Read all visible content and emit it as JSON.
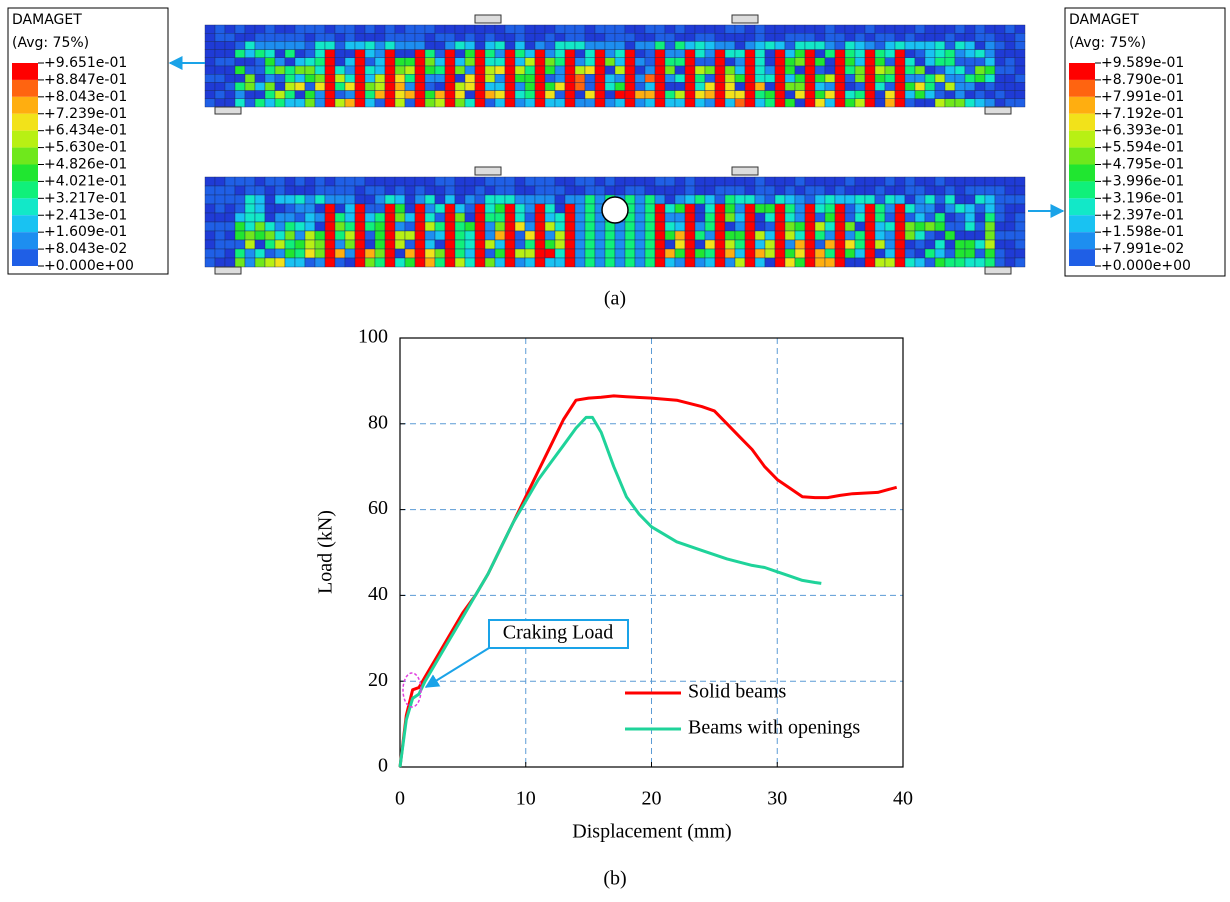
{
  "panel_a": {
    "caption": "(a)",
    "legends": [
      {
        "title": "DAMAGET",
        "subtitle": "(Avg: 75%)",
        "labels": [
          "+9.651e-01",
          "+8.847e-01",
          "+8.043e-01",
          "+7.239e-01",
          "+6.434e-01",
          "+5.630e-01",
          "+4.826e-01",
          "+4.021e-01",
          "+3.217e-01",
          "+2.413e-01",
          "+1.609e-01",
          "+8.043e-02",
          "+0.000e+00"
        ]
      },
      {
        "title": "DAMAGET",
        "subtitle": "(Avg: 75%)",
        "labels": [
          "+9.589e-01",
          "+8.790e-01",
          "+7.991e-01",
          "+7.192e-01",
          "+6.393e-01",
          "+5.594e-01",
          "+4.795e-01",
          "+3.996e-01",
          "+3.196e-01",
          "+2.397e-01",
          "+1.598e-01",
          "+7.991e-02",
          "+0.000e+00"
        ]
      }
    ]
  },
  "chart_data": {
    "type": "line",
    "caption": "(b)",
    "x_label": "Displacement (mm)",
    "y_label": "Load (kN)",
    "xlim": [
      0,
      40
    ],
    "ylim": [
      0,
      100
    ],
    "xticks": [
      0,
      10,
      20,
      30,
      40
    ],
    "yticks": [
      0,
      20,
      40,
      60,
      80,
      100
    ],
    "grid": true,
    "legend": "lower right",
    "annotations": [
      {
        "text": "Craking Load"
      }
    ],
    "series": [
      {
        "name": "Solid beams",
        "color": "#ff0000",
        "x": [
          0,
          0.5,
          1,
          1.5,
          2,
          3,
          4,
          5,
          6,
          7,
          8,
          9,
          10,
          11,
          12,
          13,
          14,
          15,
          16,
          17,
          18,
          20,
          22,
          24,
          25,
          26,
          27,
          28,
          29,
          30,
          31,
          32,
          33,
          34,
          35,
          36,
          38,
          39.5
        ],
        "values": [
          0,
          12,
          18,
          18.5,
          21,
          26,
          31,
          36,
          40,
          45,
          51,
          57,
          63,
          69,
          75,
          81,
          85.5,
          86,
          86.2,
          86.5,
          86.3,
          86,
          85.5,
          84,
          83,
          80,
          77,
          74,
          70,
          67,
          65,
          63,
          62.8,
          62.8,
          63.3,
          63.7,
          64,
          65.2
        ]
      },
      {
        "name": "Beams with openings",
        "color": "#1fd39a",
        "x": [
          0,
          0.5,
          1,
          1.5,
          2,
          3,
          4,
          5,
          6,
          7,
          8,
          9,
          10,
          11,
          12,
          13,
          14,
          14.8,
          15.3,
          16,
          17,
          18,
          19,
          20,
          22,
          24,
          26,
          28,
          29,
          30,
          31,
          32,
          33,
          33.5
        ],
        "values": [
          0,
          11,
          16,
          17,
          20,
          25,
          30,
          35,
          40,
          45,
          51,
          57,
          62,
          67,
          71,
          75,
          79,
          81.5,
          81.5,
          78,
          70,
          63,
          59,
          56,
          52.5,
          50.5,
          48.5,
          47,
          46.5,
          45.5,
          44.5,
          43.5,
          43,
          42.8
        ]
      }
    ]
  }
}
